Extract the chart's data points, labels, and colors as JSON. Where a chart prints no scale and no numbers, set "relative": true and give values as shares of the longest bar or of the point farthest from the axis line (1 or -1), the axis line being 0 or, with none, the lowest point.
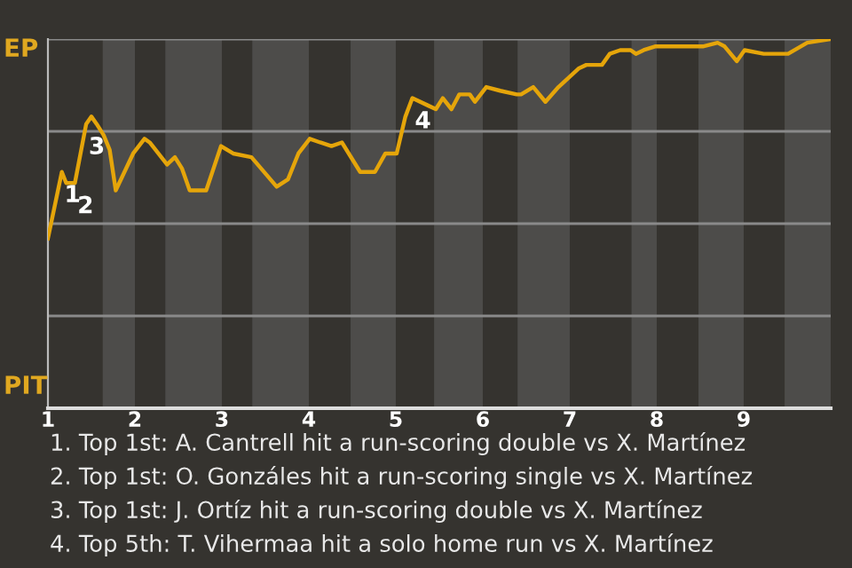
{
  "chart_data": {
    "type": "line",
    "relative": true,
    "x": [
      1.0,
      1.16,
      1.21,
      1.31,
      1.44,
      1.5,
      1.56,
      1.64,
      1.71,
      1.78,
      1.98,
      2.11,
      2.17,
      2.27,
      2.37,
      2.46,
      2.54,
      2.63,
      2.82,
      2.99,
      3.13,
      3.34,
      3.63,
      3.76,
      3.88,
      4.01,
      4.13,
      4.26,
      4.38,
      4.59,
      4.76,
      4.88,
      5.01,
      5.11,
      5.19,
      5.37,
      5.46,
      5.54,
      5.64,
      5.73,
      5.85,
      5.91,
      6.04,
      6.2,
      6.39,
      6.44,
      6.58,
      6.72,
      6.87,
      7.1,
      7.19,
      7.37,
      7.46,
      7.58,
      7.7,
      7.76,
      7.85,
      7.98,
      8.03,
      8.48,
      8.53,
      8.7,
      8.78,
      8.92,
      9.01,
      9.23,
      9.51,
      9.73,
      10.0
    ],
    "series": [
      {
        "color": "#e5a50a",
        "values": [
          0.46,
          0.64,
          0.61,
          0.61,
          0.77,
          0.79,
          0.77,
          0.74,
          0.7,
          0.59,
          0.69,
          0.73,
          0.72,
          0.69,
          0.66,
          0.68,
          0.65,
          0.59,
          0.59,
          0.71,
          0.69,
          0.68,
          0.6,
          0.62,
          0.69,
          0.73,
          0.72,
          0.71,
          0.72,
          0.64,
          0.64,
          0.69,
          0.69,
          0.79,
          0.84,
          0.82,
          0.81,
          0.84,
          0.81,
          0.85,
          0.85,
          0.83,
          0.87,
          0.86,
          0.85,
          0.85,
          0.87,
          0.83,
          0.87,
          0.92,
          0.93,
          0.93,
          0.96,
          0.97,
          0.97,
          0.96,
          0.97,
          0.98,
          0.98,
          0.98,
          0.98,
          0.99,
          0.98,
          0.94,
          0.97,
          0.96,
          0.96,
          0.99,
          1.0
        ]
      }
    ],
    "xlim": [
      1,
      10
    ],
    "xticks": [
      1,
      2,
      3,
      4,
      5,
      6,
      7,
      8,
      9
    ],
    "grid": "y",
    "marker": "none",
    "line_style": "solid",
    "bands": [
      {
        "axis": "x",
        "from": 1.63,
        "to": 2.0,
        "color": "#4d4c4a"
      },
      {
        "axis": "x",
        "from": 2.35,
        "to": 3.0,
        "color": "#4d4c4a"
      },
      {
        "axis": "x",
        "from": 3.35,
        "to": 4.0,
        "color": "#4d4c4a"
      },
      {
        "axis": "x",
        "from": 4.48,
        "to": 5.0,
        "color": "#4d4c4a"
      },
      {
        "axis": "x",
        "from": 5.44,
        "to": 6.0,
        "color": "#4d4c4a"
      },
      {
        "axis": "x",
        "from": 6.4,
        "to": 7.0,
        "color": "#4d4c4a"
      },
      {
        "axis": "x",
        "from": 7.71,
        "to": 8.0,
        "color": "#4d4c4a"
      },
      {
        "axis": "x",
        "from": 8.48,
        "to": 9.0,
        "color": "#4d4c4a"
      },
      {
        "axis": "x",
        "from": 9.47,
        "to": 10.0,
        "color": "#4d4c4a"
      }
    ],
    "annotations": [
      "EP",
      "PIT",
      {
        "text": "1",
        "x": 1.16,
        "y": 0.64
      },
      {
        "text": "2",
        "x": 1.31,
        "y": 0.61
      },
      {
        "text": "3",
        "x": 1.44,
        "y": 0.77
      },
      {
        "text": "4",
        "x": 5.19,
        "y": 0.84
      },
      "1. Top 1st: A. Cantrell hit a run-scoring double vs X. Martínez",
      "2. Top 1st: O. Gonzáles hit a run-scoring single vs X. Martínez",
      "3. Top 1st: J. Ortíz hit a run-scoring double vs X. Martínez",
      "4. Top 5th: T. Vihermaa hit a solo home run vs X. Martínez"
    ]
  }
}
